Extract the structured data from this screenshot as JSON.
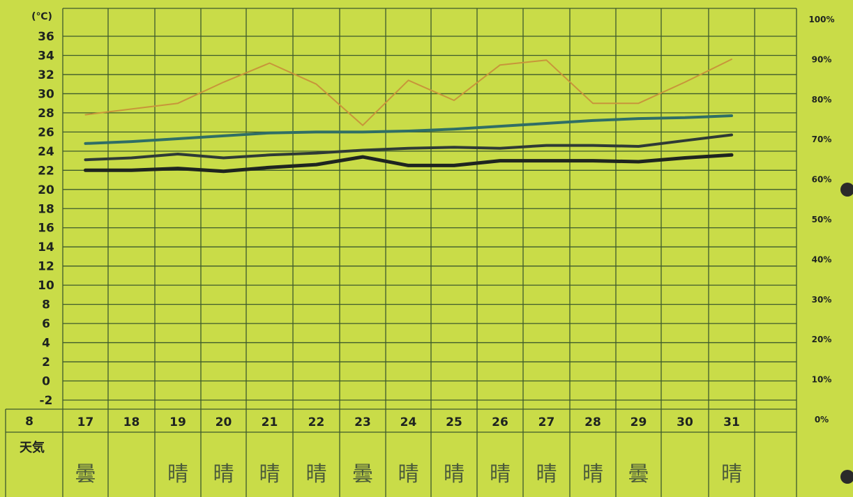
{
  "chart_data": {
    "type": "line",
    "y_unit_label": "(℃)",
    "y_ticks": [
      36,
      34,
      32,
      30,
      28,
      26,
      24,
      22,
      20,
      18,
      16,
      14,
      12,
      10,
      8,
      6,
      4,
      2,
      0,
      -2
    ],
    "right_ticks": [
      "100%",
      "90%",
      "80%",
      "70%",
      "60%",
      "50%",
      "40%",
      "30%",
      "20%",
      "10%",
      "0%"
    ],
    "month": "8",
    "days": [
      "17",
      "18",
      "19",
      "20",
      "21",
      "22",
      "23",
      "24",
      "25",
      "26",
      "27",
      "28",
      "29",
      "30",
      "31"
    ],
    "weather_label": "天気",
    "weather": [
      "曇",
      "",
      "晴",
      "晴",
      "晴",
      "晴",
      "曇",
      "晴",
      "晴",
      "晴",
      "晴",
      "晴",
      "曇",
      "",
      "晴"
    ],
    "series": [
      {
        "name": "",
        "color": "#c8953a",
        "width": 2,
        "values": [
          27.8,
          28.4,
          29.0,
          31.2,
          33.2,
          31.0,
          26.7,
          31.4,
          29.3,
          33.0,
          33.5,
          29.0,
          29.0,
          31.2,
          33.6
        ]
      },
      {
        "name": "",
        "color": "#2f6e66",
        "width": 4,
        "values": [
          24.8,
          25.0,
          25.3,
          25.6,
          25.9,
          26.0,
          26.0,
          26.1,
          26.3,
          26.6,
          26.9,
          27.2,
          27.4,
          27.5,
          27.7
        ]
      },
      {
        "name": "",
        "color": "#2e3a36",
        "width": 4,
        "values": [
          23.1,
          23.3,
          23.7,
          23.3,
          23.6,
          23.8,
          24.1,
          24.3,
          24.4,
          24.3,
          24.6,
          24.6,
          24.5,
          25.1,
          25.7
        ]
      },
      {
        "name": "",
        "color": "#1e2420",
        "width": 5,
        "values": [
          22.0,
          22.0,
          22.2,
          21.9,
          22.3,
          22.6,
          23.4,
          22.5,
          22.5,
          23.0,
          23.0,
          23.0,
          22.9,
          23.3,
          23.6
        ]
      }
    ],
    "ylim": [
      -2,
      36
    ],
    "grid": true
  }
}
